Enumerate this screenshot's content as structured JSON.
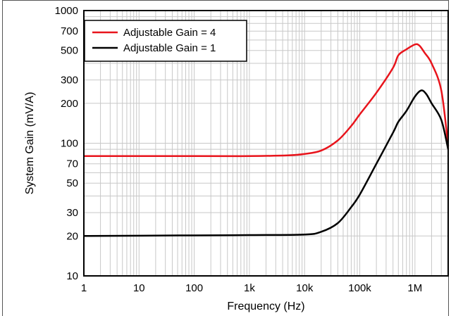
{
  "chart_data": {
    "type": "line",
    "xlabel": "Frequency (Hz)",
    "ylabel": "System Gain (mV/A)",
    "x_scale": "log",
    "y_scale": "log",
    "xlim": [
      1,
      4000000
    ],
    "ylim": [
      10,
      1000
    ],
    "x_tick_values": [
      1,
      10,
      100,
      1000,
      10000,
      100000,
      1000000
    ],
    "x_tick_labels": [
      "1",
      "10",
      "100",
      "1k",
      "10k",
      "100k",
      "1M"
    ],
    "y_tick_values": [
      10,
      20,
      30,
      50,
      70,
      100,
      200,
      300,
      500,
      700,
      1000
    ],
    "y_tick_labels": [
      "10",
      "20",
      "30",
      "50",
      "70",
      "100",
      "200",
      "300",
      "500",
      "700",
      "1000"
    ],
    "grid": true,
    "legend_position": "top-left",
    "series": [
      {
        "name": "Adjustable Gain = 4",
        "color": "#e8141c",
        "points": [
          [
            1,
            80
          ],
          [
            100,
            80
          ],
          [
            1000,
            80
          ],
          [
            5000,
            81
          ],
          [
            10000,
            83
          ],
          [
            20000,
            88
          ],
          [
            40000,
            105
          ],
          [
            70000,
            135
          ],
          [
            100000,
            165
          ],
          [
            200000,
            240
          ],
          [
            400000,
            370
          ],
          [
            500000,
            460
          ],
          [
            700000,
            510
          ],
          [
            1000000,
            555
          ],
          [
            1200000,
            545
          ],
          [
            1500000,
            480
          ],
          [
            2000000,
            400
          ],
          [
            3000000,
            250
          ],
          [
            4000000,
            95
          ]
        ]
      },
      {
        "name": "Adjustable Gain = 1",
        "color": "#000000",
        "points": [
          [
            1,
            20
          ],
          [
            100,
            20.2
          ],
          [
            1000,
            20.3
          ],
          [
            10000,
            20.5
          ],
          [
            20000,
            21.5
          ],
          [
            40000,
            25
          ],
          [
            70000,
            33
          ],
          [
            100000,
            41
          ],
          [
            200000,
            70
          ],
          [
            400000,
            120
          ],
          [
            500000,
            145
          ],
          [
            700000,
            175
          ],
          [
            1000000,
            225
          ],
          [
            1300000,
            250
          ],
          [
            1600000,
            235
          ],
          [
            2000000,
            200
          ],
          [
            3000000,
            150
          ],
          [
            4000000,
            90
          ]
        ]
      }
    ]
  }
}
